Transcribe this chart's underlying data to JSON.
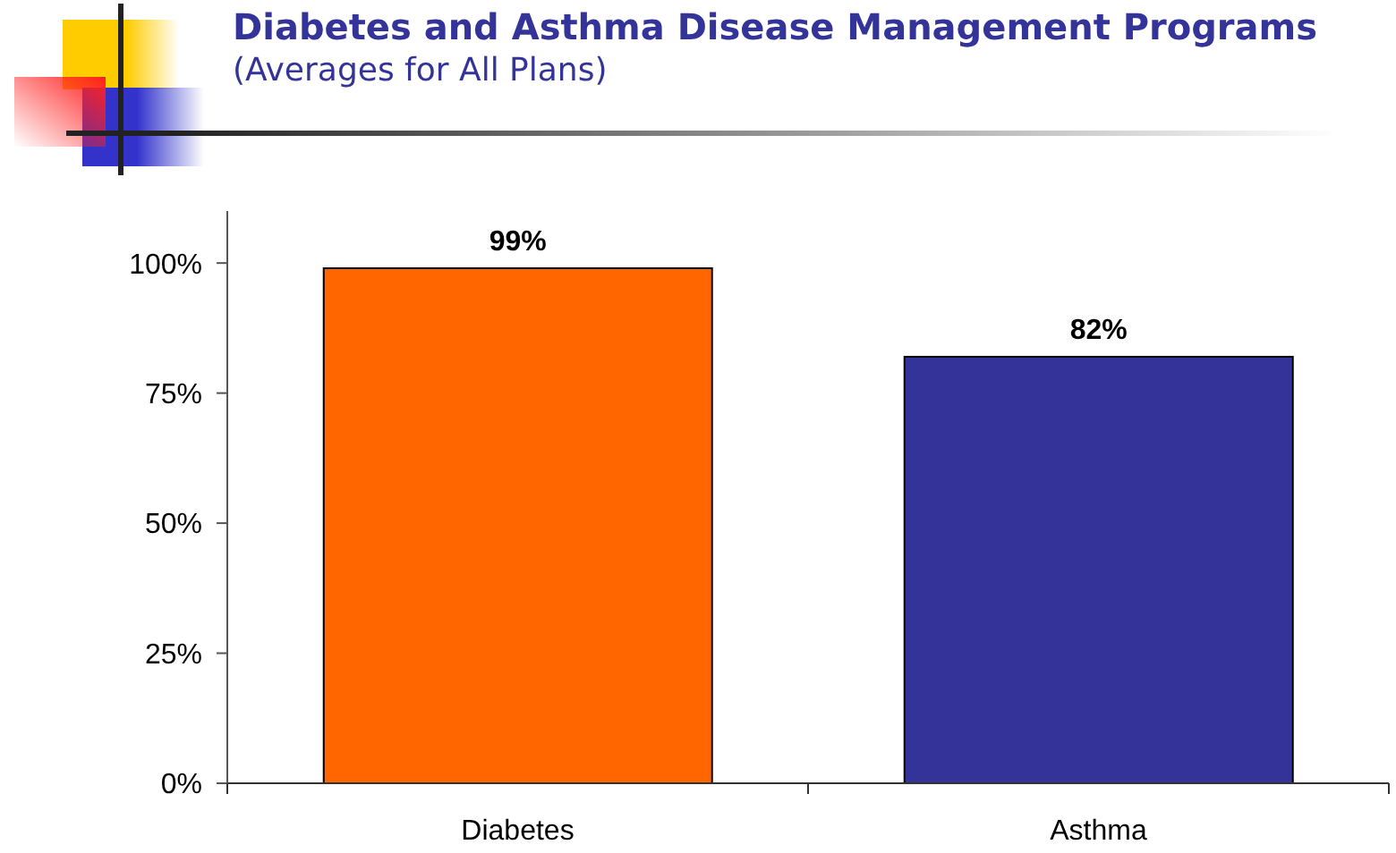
{
  "chart_data": {
    "type": "bar",
    "title": "Diabetes and Asthma Disease Management Programs",
    "subtitle": "(Averages for All Plans)",
    "categories": [
      "Diabetes",
      "Asthma"
    ],
    "values": [
      99,
      82
    ],
    "colors": [
      "#ff6600",
      "#333399"
    ],
    "value_labels": [
      "99%",
      "82%"
    ],
    "ylim": [
      0,
      110
    ],
    "yticks": [
      {
        "value": 0,
        "label": "0%"
      },
      {
        "value": 25,
        "label": "25%"
      },
      {
        "value": 50,
        "label": "50%"
      },
      {
        "value": 75,
        "label": "75%"
      },
      {
        "value": 100,
        "label": "100%"
      }
    ]
  }
}
